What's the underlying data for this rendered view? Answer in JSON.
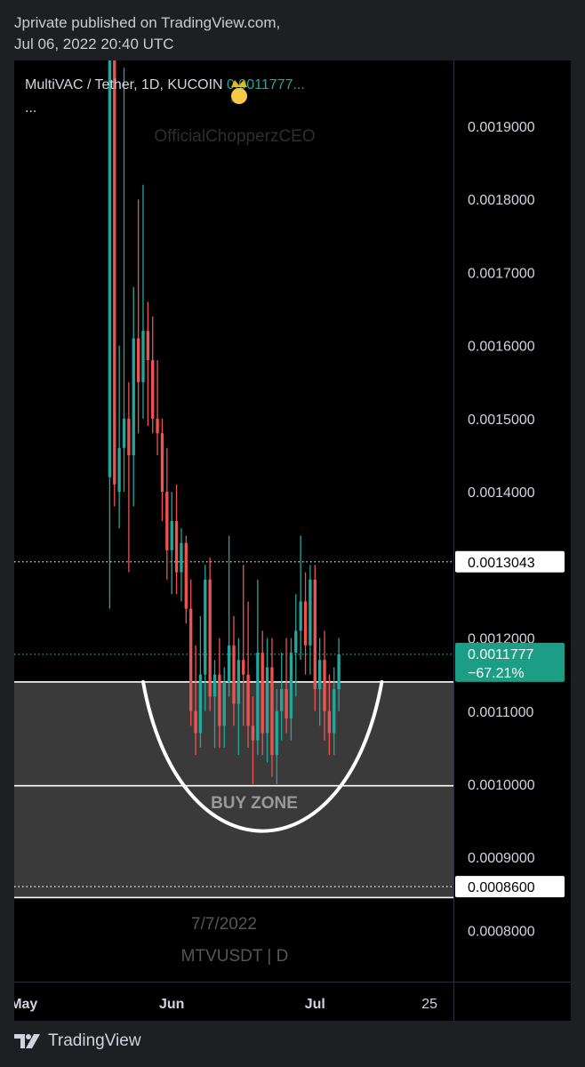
{
  "header": {
    "published_line": "Jprivate published on TradingView.com,",
    "date_line": "Jul 06, 2022 20:40 UTC"
  },
  "footer": {
    "brand": "TradingView",
    "brand_icon": "tradingview-logo-icon"
  },
  "chart_data": {
    "type": "candlestick",
    "symbol_line": "MultiVAC / Tether, 1D, KUCOIN",
    "last_price_text": "0.0011777...",
    "legend_more": "...",
    "watermark_user": "OfficialChopperzCEO",
    "watermark_date": "7/7/2022",
    "watermark_symbol": "MTVUSDT | D",
    "annotation_text": "BUY ZONE",
    "colors": {
      "up": "#26a69a",
      "down": "#ef5350",
      "zone": "#3a3a3a",
      "price_label_bg": "#1b9e85",
      "text_up": "#26a69a"
    },
    "y_ticks": [
      "0.0019000",
      "0.0018000",
      "0.0017000",
      "0.0016000",
      "0.0015000",
      "0.0014000",
      "0.0012000",
      "0.0011000",
      "0.0010000",
      "0.0009000",
      "0.0008000"
    ],
    "y_tick_values": [
      0.0019,
      0.0018,
      0.0017,
      0.0016,
      0.0015,
      0.0014,
      0.0012,
      0.0011,
      0.001,
      0.0009,
      0.0008
    ],
    "ylim": [
      0.00073,
      0.00199
    ],
    "x_tick_labels": [
      "May",
      "Jun",
      "Jul",
      "25"
    ],
    "x_tick_dates": [
      "2022-05-01",
      "2022-06-01",
      "2022-07-01",
      "2022-07-25"
    ],
    "xlim": [
      "2022-04-29",
      "2022-07-30"
    ],
    "horizontal_lines": [
      {
        "value": 0.0013043,
        "style": "dotted",
        "color": "#ffffff",
        "label": "0.0013043"
      },
      {
        "value": 0.0011777,
        "style": "dotted",
        "color": "#26a69a",
        "label": "0.0011777",
        "sublabel": "−67.21%"
      },
      {
        "value": 0.00086,
        "style": "dotted",
        "color": "#ffffff",
        "label": "0.0008600"
      },
      {
        "value": 0.00114,
        "style": "solid",
        "color": "#ffffff"
      },
      {
        "value": 0.000998,
        "style": "solid",
        "color": "#ffffff"
      },
      {
        "value": 0.000845,
        "style": "solid",
        "color": "#ffffff"
      }
    ],
    "buy_zone": {
      "top": 0.00114,
      "bottom": 0.000845
    },
    "cup_curve": {
      "start_date": "2022-05-26",
      "end_date": "2022-07-15",
      "top_value": 0.00114,
      "bottom_value": 0.000937
    },
    "candles": [
      {
        "d": "2022-05-19",
        "o": 0.00142,
        "h": 0.00199,
        "l": 0.00124,
        "c": 0.00199
      },
      {
        "d": "2022-05-20",
        "o": 0.00199,
        "h": 0.00199,
        "l": 0.00138,
        "c": 0.00141
      },
      {
        "d": "2022-05-21",
        "o": 0.0014,
        "h": 0.0016,
        "l": 0.00135,
        "c": 0.00146
      },
      {
        "d": "2022-05-22",
        "o": 0.00146,
        "h": 0.00198,
        "l": 0.0014,
        "c": 0.0015
      },
      {
        "d": "2022-05-23",
        "o": 0.0015,
        "h": 0.00155,
        "l": 0.00129,
        "c": 0.00145
      },
      {
        "d": "2022-05-24",
        "o": 0.00145,
        "h": 0.00168,
        "l": 0.00138,
        "c": 0.00161
      },
      {
        "d": "2022-05-25",
        "o": 0.00161,
        "h": 0.0018,
        "l": 0.00148,
        "c": 0.00155
      },
      {
        "d": "2022-05-26",
        "o": 0.00155,
        "h": 0.00182,
        "l": 0.0015,
        "c": 0.00162
      },
      {
        "d": "2022-05-27",
        "o": 0.00162,
        "h": 0.00166,
        "l": 0.00149,
        "c": 0.00158
      },
      {
        "d": "2022-05-28",
        "o": 0.00158,
        "h": 0.00164,
        "l": 0.00148,
        "c": 0.0015
      },
      {
        "d": "2022-05-29",
        "o": 0.0015,
        "h": 0.00158,
        "l": 0.00145,
        "c": 0.00148
      },
      {
        "d": "2022-05-30",
        "o": 0.00148,
        "h": 0.0015,
        "l": 0.00136,
        "c": 0.0014
      },
      {
        "d": "2022-05-31",
        "o": 0.0014,
        "h": 0.00146,
        "l": 0.00128,
        "c": 0.00132
      },
      {
        "d": "2022-06-01",
        "o": 0.00132,
        "h": 0.0014,
        "l": 0.00126,
        "c": 0.00136
      },
      {
        "d": "2022-06-02",
        "o": 0.00136,
        "h": 0.00141,
        "l": 0.00126,
        "c": 0.00129
      },
      {
        "d": "2022-06-03",
        "o": 0.00129,
        "h": 0.00135,
        "l": 0.00125,
        "c": 0.00133
      },
      {
        "d": "2022-06-04",
        "o": 0.00133,
        "h": 0.00134,
        "l": 0.00122,
        "c": 0.00124
      },
      {
        "d": "2022-06-05",
        "o": 0.00124,
        "h": 0.00128,
        "l": 0.00108,
        "c": 0.0011
      },
      {
        "d": "2022-06-06",
        "o": 0.0011,
        "h": 0.00119,
        "l": 0.00104,
        "c": 0.00107
      },
      {
        "d": "2022-06-07",
        "o": 0.00107,
        "h": 0.00123,
        "l": 0.00105,
        "c": 0.00115
      },
      {
        "d": "2022-06-08",
        "o": 0.00115,
        "h": 0.0013,
        "l": 0.0011,
        "c": 0.00128
      },
      {
        "d": "2022-06-09",
        "o": 0.00128,
        "h": 0.00131,
        "l": 0.0011,
        "c": 0.00112
      },
      {
        "d": "2022-06-10",
        "o": 0.00112,
        "h": 0.00117,
        "l": 0.00105,
        "c": 0.00115
      },
      {
        "d": "2022-06-11",
        "o": 0.00115,
        "h": 0.0012,
        "l": 0.00105,
        "c": 0.00108
      },
      {
        "d": "2022-06-12",
        "o": 0.00108,
        "h": 0.00116,
        "l": 0.00105,
        "c": 0.00114
      },
      {
        "d": "2022-06-13",
        "o": 0.00114,
        "h": 0.00134,
        "l": 0.00112,
        "c": 0.00119
      },
      {
        "d": "2022-06-14",
        "o": 0.00119,
        "h": 0.00123,
        "l": 0.00108,
        "c": 0.00111
      },
      {
        "d": "2022-06-15",
        "o": 0.00111,
        "h": 0.0012,
        "l": 0.00104,
        "c": 0.00117
      },
      {
        "d": "2022-06-16",
        "o": 0.00117,
        "h": 0.0013,
        "l": 0.00108,
        "c": 0.00115
      },
      {
        "d": "2022-06-17",
        "o": 0.00115,
        "h": 0.00125,
        "l": 0.00105,
        "c": 0.00108
      },
      {
        "d": "2022-06-18",
        "o": 0.00108,
        "h": 0.00112,
        "l": 0.001,
        "c": 0.00106
      },
      {
        "d": "2022-06-19",
        "o": 0.00106,
        "h": 0.00128,
        "l": 0.00104,
        "c": 0.00118
      },
      {
        "d": "2022-06-20",
        "o": 0.00118,
        "h": 0.00121,
        "l": 0.00104,
        "c": 0.00107
      },
      {
        "d": "2022-06-21",
        "o": 0.00107,
        "h": 0.0012,
        "l": 0.00103,
        "c": 0.00116
      },
      {
        "d": "2022-06-22",
        "o": 0.00116,
        "h": 0.0012,
        "l": 0.00101,
        "c": 0.00104
      },
      {
        "d": "2022-06-23",
        "o": 0.00104,
        "h": 0.00113,
        "l": 0.001,
        "c": 0.0011
      },
      {
        "d": "2022-06-24",
        "o": 0.0011,
        "h": 0.00118,
        "l": 0.00106,
        "c": 0.00113
      },
      {
        "d": "2022-06-25",
        "o": 0.00113,
        "h": 0.0012,
        "l": 0.00107,
        "c": 0.00109
      },
      {
        "d": "2022-06-26",
        "o": 0.00109,
        "h": 0.0012,
        "l": 0.00106,
        "c": 0.00118
      },
      {
        "d": "2022-06-27",
        "o": 0.00118,
        "h": 0.00126,
        "l": 0.00112,
        "c": 0.00121
      },
      {
        "d": "2022-06-28",
        "o": 0.00121,
        "h": 0.00134,
        "l": 0.00117,
        "c": 0.00125
      },
      {
        "d": "2022-06-29",
        "o": 0.00125,
        "h": 0.00129,
        "l": 0.00115,
        "c": 0.00119
      },
      {
        "d": "2022-06-30",
        "o": 0.00119,
        "h": 0.0013,
        "l": 0.00115,
        "c": 0.00128
      },
      {
        "d": "2022-07-01",
        "o": 0.00128,
        "h": 0.0013,
        "l": 0.0011,
        "c": 0.00113
      },
      {
        "d": "2022-07-02",
        "o": 0.00113,
        "h": 0.0012,
        "l": 0.00108,
        "c": 0.00117
      },
      {
        "d": "2022-07-03",
        "o": 0.00117,
        "h": 0.00121,
        "l": 0.00106,
        "c": 0.0011
      },
      {
        "d": "2022-07-04",
        "o": 0.0011,
        "h": 0.00115,
        "l": 0.00104,
        "c": 0.00107
      },
      {
        "d": "2022-07-05",
        "o": 0.00107,
        "h": 0.00116,
        "l": 0.00104,
        "c": 0.00113
      },
      {
        "d": "2022-07-06",
        "o": 0.00113,
        "h": 0.0012,
        "l": 0.0011,
        "c": 0.0011777
      }
    ]
  }
}
